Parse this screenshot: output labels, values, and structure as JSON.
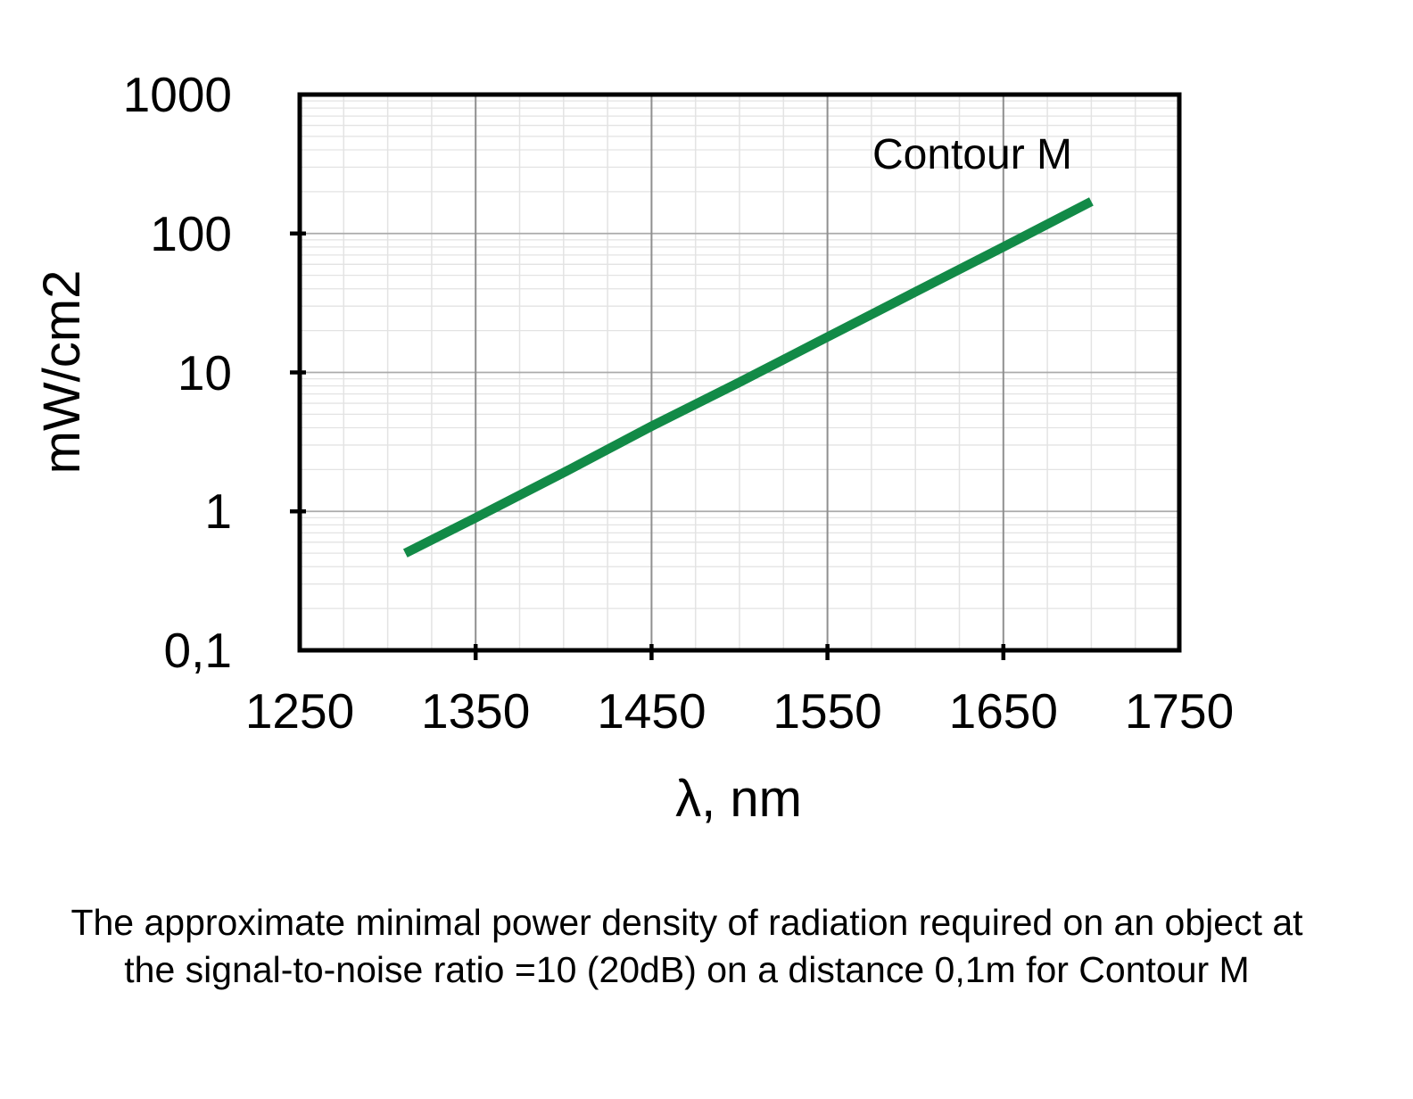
{
  "figure": {
    "annotation": "Contour M",
    "y_axis": {
      "label": "mW/cm2",
      "tick_labels": [
        "1000",
        "100",
        "10",
        "1",
        "0,1"
      ]
    },
    "x_axis": {
      "label": "λ, nm",
      "tick_labels": [
        "1250",
        "1350",
        "1450",
        "1550",
        "1650",
        "1750"
      ]
    },
    "caption": {
      "line1": "The approximate minimal power density of radiation required on an object at",
      "line2": "the signal-to-noise ratio =10 (20dB) on a distance 0,1m for Contour M"
    },
    "colors": {
      "series_green": "#128A47",
      "frame_black": "#000000",
      "grid_minor": "#e3e3e3",
      "grid_major_h": "#ababab",
      "grid_major_v": "#8f8f8f"
    }
  },
  "chart_data": {
    "type": "line",
    "title": "",
    "xlabel": "λ, nm",
    "ylabel": "mW/cm2",
    "x_scale": "linear",
    "y_scale": "log",
    "xlim": [
      1250,
      1750
    ],
    "ylim": [
      0.1,
      1000
    ],
    "x_major_ticks": [
      1250,
      1350,
      1450,
      1550,
      1650,
      1750
    ],
    "x_minor_step": 25,
    "y_major_ticks": [
      1000,
      100,
      10,
      1,
      0.1
    ],
    "grid": "major+minor",
    "legend_position": "annotation-top-right",
    "annotation": {
      "text": "Contour M",
      "x": 1630,
      "y": 350
    },
    "series": [
      {
        "name": "Contour M",
        "color": "#128A47",
        "x": [
          1310,
          1350,
          1400,
          1450,
          1500,
          1550,
          1600,
          1650,
          1700
        ],
        "y": [
          0.5,
          0.9,
          1.9,
          4.1,
          8.5,
          18,
          38,
          80,
          170
        ]
      }
    ]
  }
}
